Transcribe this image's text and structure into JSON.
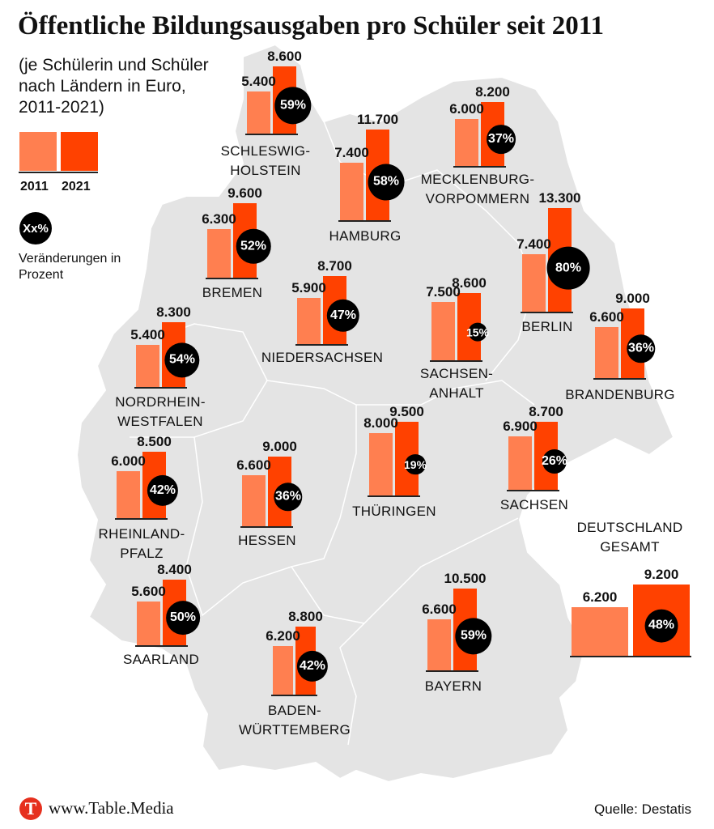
{
  "title": "Öffentliche Bildungsausgaben pro Schüler seit 2011",
  "subtitle": "(je Schülerin und Schüler nach Ländern in Euro, 2011-2021)",
  "legend": {
    "year_2011": "2011",
    "year_2021": "2021",
    "circle_label": "Xx%",
    "circle_text": "Veränderungen in Prozent"
  },
  "colors": {
    "bar_2011": "#ff7f50",
    "bar_2021": "#ff4100",
    "circle": "#000000",
    "map": "#e4e4e4"
  },
  "footer": {
    "logo_letter": "T",
    "url": "www.Table.Media",
    "source": "Quelle: Destatis"
  },
  "chart_data": {
    "type": "bar",
    "series_names": [
      "2011",
      "2021"
    ],
    "states": [
      {
        "label": [
          "SCHLESWIG-",
          "HOLSTEIN"
        ],
        "v2011": "5.400",
        "v2021": "8.600",
        "change": "59%"
      },
      {
        "label": [
          "HAMBURG"
        ],
        "v2011": "7.400",
        "v2021": "11.700",
        "change": "58%"
      },
      {
        "label": [
          "MECKLENBURG-",
          "VORPOMMERN"
        ],
        "v2011": "6.000",
        "v2021": "8.200",
        "change": "37%"
      },
      {
        "label": [
          "BREMEN"
        ],
        "v2011": "6.300",
        "v2021": "9.600",
        "change": "52%"
      },
      {
        "label": [
          "NIEDERSACHSEN"
        ],
        "v2011": "5.900",
        "v2021": "8.700",
        "change": "47%"
      },
      {
        "label": [
          "BERLIN"
        ],
        "v2011": "7.400",
        "v2021": "13.300",
        "change": "80%"
      },
      {
        "label": [
          "SACHSEN-",
          "ANHALT"
        ],
        "v2011": "7.500",
        "v2021": "8.600",
        "change": "15%"
      },
      {
        "label": [
          "BRANDENBURG"
        ],
        "v2011": "6.600",
        "v2021": "9.000",
        "change": "36%"
      },
      {
        "label": [
          "NORDRHEIN-",
          "WESTFALEN"
        ],
        "v2011": "5.400",
        "v2021": "8.300",
        "change": "54%"
      },
      {
        "label": [
          "THÜRINGEN"
        ],
        "v2011": "8.000",
        "v2021": "9.500",
        "change": "19%"
      },
      {
        "label": [
          "SACHSEN"
        ],
        "v2011": "6.900",
        "v2021": "8.700",
        "change": "26%"
      },
      {
        "label": [
          "RHEINLAND-",
          "PFALZ"
        ],
        "v2011": "6.000",
        "v2021": "8.500",
        "change": "42%"
      },
      {
        "label": [
          "HESSEN"
        ],
        "v2011": "6.600",
        "v2021": "9.000",
        "change": "36%"
      },
      {
        "label": [
          "SAARLAND"
        ],
        "v2011": "5.600",
        "v2021": "8.400",
        "change": "50%"
      },
      {
        "label": [
          "BADEN-",
          "WÜRTTEMBERG"
        ],
        "v2011": "6.200",
        "v2021": "8.800",
        "change": "42%"
      },
      {
        "label": [
          "BAYERN"
        ],
        "v2011": "6.600",
        "v2021": "10.500",
        "change": "59%"
      },
      {
        "label": [
          "DEUTSCHLAND",
          "GESAMT"
        ],
        "v2011": "6.200",
        "v2021": "9.200",
        "change": "48%"
      }
    ]
  }
}
